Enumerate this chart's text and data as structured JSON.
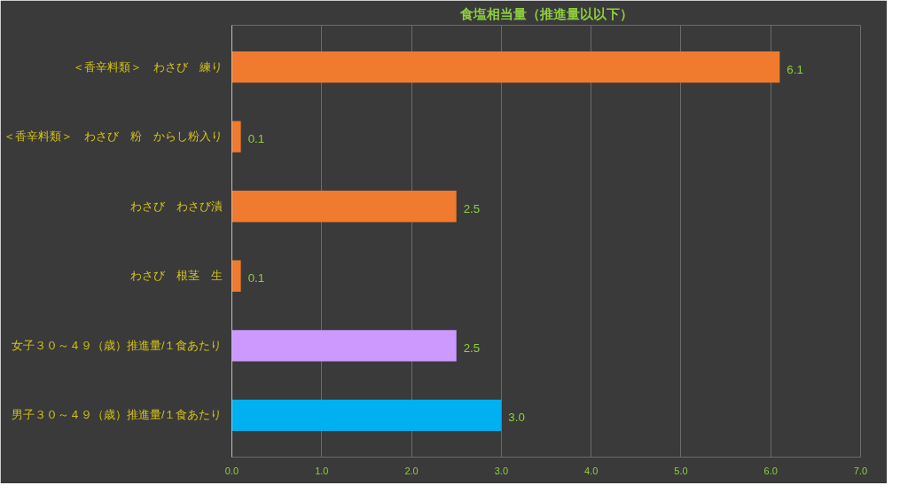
{
  "chart_data": {
    "type": "bar",
    "orientation": "horizontal",
    "title": "食塩相当量（推進量以以下）",
    "categories": [
      "＜香辛料類＞　わさび　練り",
      "＜香辛料類＞　わさび　粉　からし粉入り",
      "わさび　わさび漬",
      "わさび　根茎　生",
      "女子３０～４９（歳）推進量/１食あたり",
      "男子３０～４９（歳）推進量/１食あたり"
    ],
    "values": [
      6.1,
      0.1,
      2.5,
      0.1,
      2.5,
      3.0
    ],
    "value_labels": [
      "6.1",
      "0.1",
      "2.5",
      "0.1",
      "2.5",
      "3.0"
    ],
    "colors": [
      "#f07a2e",
      "#f07a2e",
      "#f07a2e",
      "#f07a2e",
      "#cc99ff",
      "#00b0f0"
    ],
    "xlim": [
      0,
      7
    ],
    "xticks": [
      {
        "value": 0,
        "label": "0.0"
      },
      {
        "value": 1,
        "label": "1.0"
      },
      {
        "value": 2,
        "label": "2.0"
      },
      {
        "value": 3,
        "label": "3.0"
      },
      {
        "value": 4,
        "label": "4.0"
      },
      {
        "value": 5,
        "label": "5.0"
      },
      {
        "value": 6,
        "label": "6.0"
      },
      {
        "value": 7,
        "label": "7.0"
      }
    ],
    "grid": "x"
  }
}
